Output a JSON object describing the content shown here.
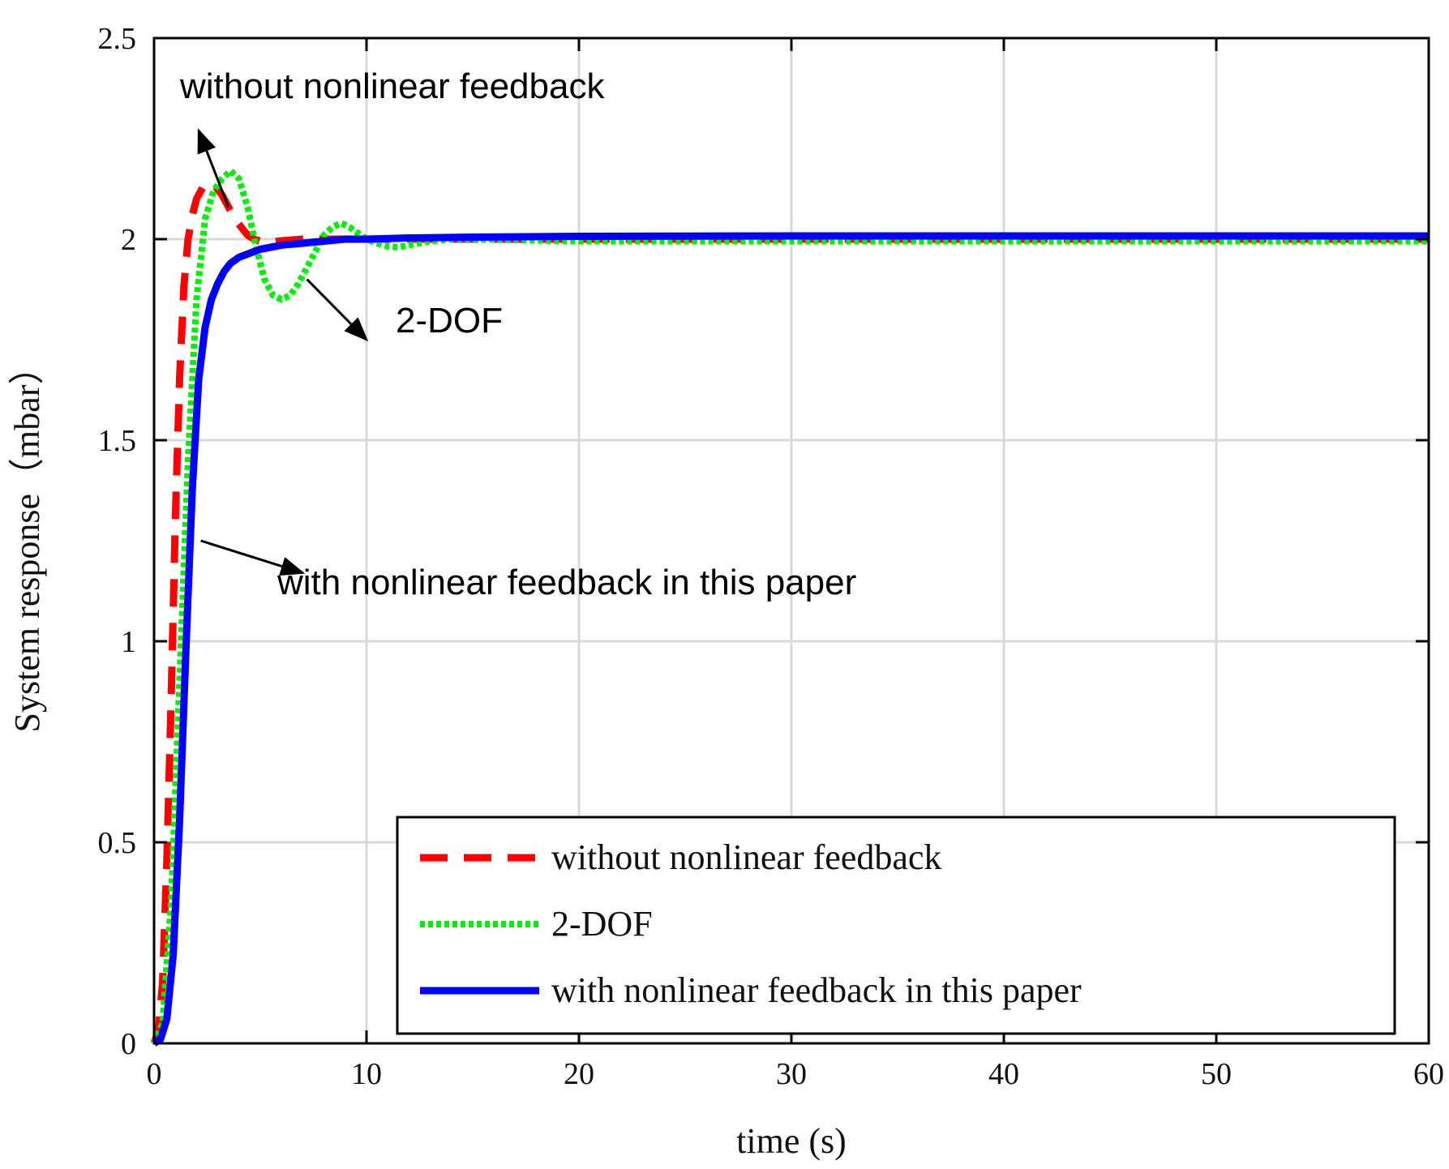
{
  "chart_data": {
    "type": "line",
    "title": "",
    "xlabel": "time (s)",
    "ylabel": "System response（mbar）",
    "xlim": [
      0,
      60
    ],
    "ylim": [
      0,
      2.5
    ],
    "xticks": [
      "0",
      "10",
      "20",
      "30",
      "40",
      "50",
      "60"
    ],
    "yticks": [
      "0",
      "0.5",
      "1",
      "1.5",
      "2",
      "2.5"
    ],
    "grid": true,
    "legend_position": "bottom-right",
    "series": [
      {
        "name": "without nonlinear feedback",
        "color": "#ff0000",
        "style": "dashed",
        "x": [
          0,
          0.2,
          0.4,
          0.6,
          0.8,
          1.0,
          1.2,
          1.4,
          1.6,
          1.8,
          2.0,
          2.3,
          2.6,
          2.9,
          3.2,
          3.5,
          3.8,
          4.1,
          4.4,
          4.7,
          5.0,
          5.5,
          6,
          7,
          8,
          10,
          15,
          20,
          30,
          40,
          50,
          60
        ],
        "y": [
          0,
          0.03,
          0.15,
          0.45,
          0.85,
          1.3,
          1.65,
          1.88,
          2.0,
          2.06,
          2.1,
          2.13,
          2.14,
          2.13,
          2.11,
          2.08,
          2.05,
          2.03,
          2.01,
          2.0,
          1.995,
          1.993,
          1.996,
          2.0,
          2.0,
          2.0,
          2.0,
          2.0,
          2.0,
          2.0,
          2.0,
          2.0
        ]
      },
      {
        "name": "2-DOF",
        "color": "#00ee00",
        "style": "dotted",
        "x": [
          0,
          0.4,
          0.8,
          1.2,
          1.6,
          2.0,
          2.4,
          2.8,
          3.2,
          3.6,
          4.0,
          4.4,
          4.8,
          5.2,
          5.6,
          6.0,
          6.4,
          6.8,
          7.2,
          7.6,
          8.0,
          8.4,
          8.8,
          9.2,
          9.6,
          10,
          10.5,
          11,
          11.5,
          12,
          12.5,
          13,
          14,
          15,
          17,
          20,
          30,
          40,
          50,
          60
        ],
        "y": [
          0,
          0.05,
          0.35,
          0.9,
          1.45,
          1.85,
          2.05,
          2.12,
          2.15,
          2.17,
          2.15,
          2.08,
          1.98,
          1.9,
          1.86,
          1.85,
          1.86,
          1.89,
          1.93,
          1.97,
          2.01,
          2.03,
          2.04,
          2.03,
          2.015,
          2.0,
          1.99,
          1.982,
          1.98,
          1.985,
          1.99,
          1.995,
          2.0,
          2.0,
          1.998,
          1.995,
          1.995,
          1.995,
          1.995,
          1.995
        ]
      },
      {
        "name": "with nonlinear feedback in this paper",
        "color": "#0000ff",
        "style": "solid",
        "x": [
          0,
          0.3,
          0.6,
          0.9,
          1.2,
          1.5,
          1.8,
          2.1,
          2.4,
          2.7,
          3.0,
          3.3,
          3.6,
          4.0,
          4.5,
          5.0,
          5.5,
          6,
          7,
          8,
          9,
          10,
          12,
          15,
          20,
          30,
          40,
          50,
          60
        ],
        "y": [
          0,
          0.01,
          0.06,
          0.22,
          0.55,
          0.98,
          1.38,
          1.65,
          1.78,
          1.85,
          1.89,
          1.92,
          1.94,
          1.955,
          1.965,
          1.975,
          1.98,
          1.985,
          1.99,
          1.995,
          2.0,
          2.0,
          2.003,
          2.005,
          2.007,
          2.008,
          2.008,
          2.008,
          2.008
        ]
      }
    ],
    "annotations": [
      {
        "text": "without nonlinear feedback",
        "target_series": "without nonlinear feedback"
      },
      {
        "text": "2-DOF",
        "target_series": "2-DOF"
      },
      {
        "text": "with nonlinear feedback in this paper",
        "target_series": "with nonlinear feedback in this paper"
      }
    ]
  }
}
